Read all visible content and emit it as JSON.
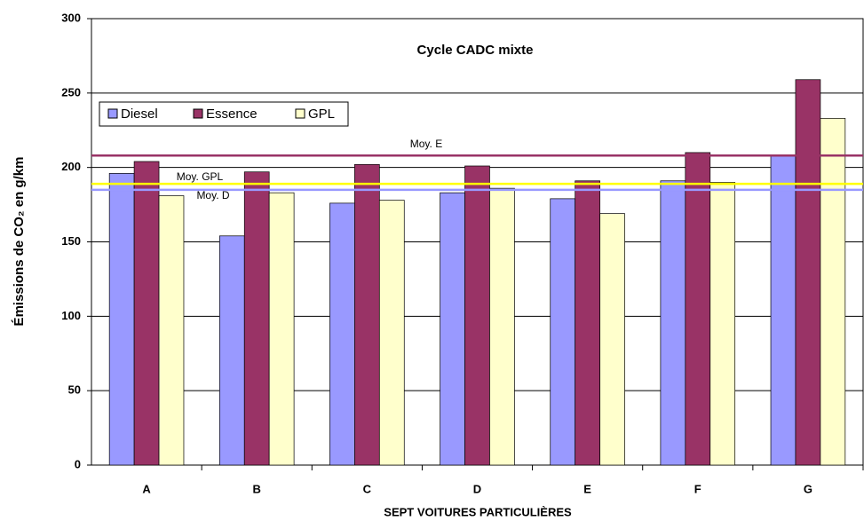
{
  "chart_data": {
    "type": "bar",
    "title": "Cycle CADC mixte",
    "x_label": "SEPT VOITURES PARTICULIÈRES",
    "y_label": "Émissions de CO₂ en g/km",
    "categories": [
      "A",
      "B",
      "C",
      "D",
      "E",
      "F",
      "G"
    ],
    "series": [
      {
        "name": "Diesel",
        "color": "#9999ff",
        "values": [
          196,
          154,
          176,
          183,
          179,
          191,
          208
        ]
      },
      {
        "name": "Essence",
        "color": "#993366",
        "values": [
          204,
          197,
          202,
          201,
          191,
          210,
          259
        ]
      },
      {
        "name": "GPL",
        "color": "#ffffcc",
        "values": [
          181,
          183,
          178,
          186,
          169,
          190,
          233
        ]
      }
    ],
    "reference_lines": [
      {
        "label": "Moy. E",
        "value": 208,
        "color": "#993366"
      },
      {
        "label": "Moy. GPL",
        "value": 189,
        "color": "#ffff00"
      },
      {
        "label": "Moy. D",
        "value": 185,
        "color": "#9999ff"
      }
    ],
    "ylim": [
      0,
      300
    ],
    "yticks": [
      0,
      50,
      100,
      150,
      200,
      250,
      300
    ],
    "grid": true,
    "legend": "top-left"
  }
}
